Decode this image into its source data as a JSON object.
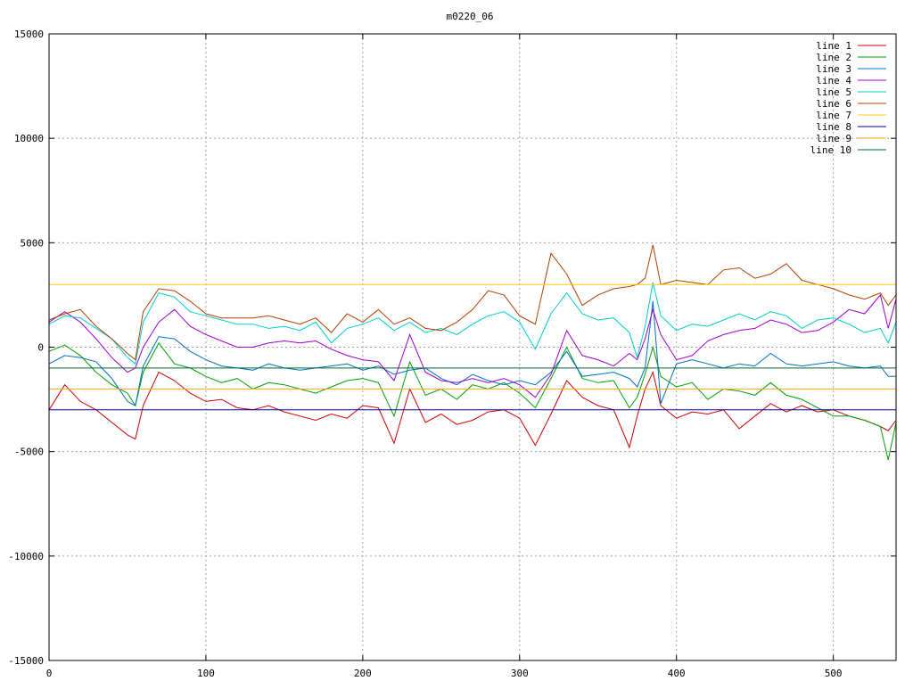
{
  "chart_data": {
    "type": "line",
    "title": "m0220_06",
    "xlabel": "",
    "ylabel": "",
    "xlim": [
      0,
      540
    ],
    "ylim": [
      -15000,
      15000
    ],
    "grid": true,
    "legend_position": "top-right",
    "x_ticks": [
      0,
      100,
      200,
      300,
      400,
      500
    ],
    "x_tick_labels": [
      "0",
      "100",
      "200",
      "300",
      "400",
      "500"
    ],
    "y_ticks": [
      -15000,
      -10000,
      -5000,
      0,
      5000,
      10000,
      15000
    ],
    "y_tick_labels": [
      "-15000",
      "-10000",
      "-5000",
      "0",
      "5000",
      "10000",
      "15000"
    ],
    "x": [
      0,
      10,
      20,
      30,
      40,
      50,
      55,
      60,
      70,
      80,
      90,
      100,
      110,
      120,
      130,
      140,
      150,
      160,
      170,
      180,
      190,
      200,
      210,
      220,
      230,
      240,
      250,
      260,
      270,
      280,
      290,
      300,
      310,
      320,
      330,
      340,
      350,
      360,
      370,
      375,
      380,
      385,
      390,
      400,
      410,
      420,
      430,
      440,
      450,
      460,
      470,
      480,
      490,
      500,
      510,
      520,
      530,
      535,
      540
    ],
    "series": [
      {
        "name": "line 1",
        "color": "#cc0000",
        "values": [
          -3000,
          -1800,
          -2600,
          -3000,
          -3600,
          -4200,
          -4400,
          -2800,
          -1200,
          -1600,
          -2200,
          -2600,
          -2500,
          -2900,
          -3000,
          -2800,
          -3100,
          -3300,
          -3500,
          -3200,
          -3400,
          -2800,
          -2900,
          -4600,
          -2000,
          -3600,
          -3200,
          -3700,
          -3500,
          -3100,
          -3000,
          -3400,
          -4700,
          -3200,
          -1600,
          -2400,
          -2800,
          -3000,
          -4800,
          -3300,
          -2000,
          -1200,
          -2800,
          -3400,
          -3100,
          -3200,
          -3000,
          -3900,
          -3300,
          -2700,
          -3100,
          -2800,
          -3100,
          -3000,
          -3300,
          -3500,
          -3800,
          -4000,
          -3500
        ]
      },
      {
        "name": "line 2",
        "color": "#00a000",
        "values": [
          -200,
          100,
          -400,
          -1200,
          -1800,
          -2200,
          -2800,
          -1200,
          200,
          -800,
          -1000,
          -1400,
          -1700,
          -1500,
          -2000,
          -1700,
          -1800,
          -2000,
          -2200,
          -1900,
          -1600,
          -1500,
          -1700,
          -3300,
          -700,
          -2300,
          -2000,
          -2500,
          -1800,
          -2000,
          -1700,
          -2200,
          -2900,
          -1500,
          0,
          -1500,
          -1700,
          -1600,
          -2900,
          -2400,
          -1300,
          0,
          -1400,
          -1900,
          -1700,
          -2500,
          -2000,
          -2100,
          -2300,
          -1700,
          -2300,
          -2500,
          -2900,
          -3300,
          -3300,
          -3500,
          -3800,
          -5400,
          -3600
        ]
      },
      {
        "name": "line 3",
        "color": "#0070c0",
        "values": [
          -800,
          -400,
          -500,
          -700,
          -1500,
          -2600,
          -2800,
          -900,
          500,
          400,
          -200,
          -600,
          -900,
          -1000,
          -1100,
          -800,
          -1000,
          -1100,
          -1000,
          -900,
          -800,
          -1100,
          -900,
          -1300,
          -1100,
          -1000,
          -1500,
          -1800,
          -1300,
          -1600,
          -1800,
          -1600,
          -1800,
          -1200,
          -200,
          -1400,
          -1300,
          -1200,
          -1500,
          -1900,
          -1000,
          2200,
          -2700,
          -800,
          -600,
          -800,
          -1000,
          -800,
          -900,
          -300,
          -800,
          -900,
          -800,
          -700,
          -900,
          -1000,
          -900,
          -1400,
          -1400
        ]
      },
      {
        "name": "line 4",
        "color": "#a000d0",
        "values": [
          1200,
          1700,
          1200,
          400,
          -500,
          -1200,
          -1000,
          0,
          1200,
          1800,
          1000,
          600,
          300,
          0,
          0,
          200,
          300,
          200,
          300,
          -100,
          -400,
          -600,
          -700,
          -1600,
          600,
          -1200,
          -1600,
          -1700,
          -1500,
          -1700,
          -1500,
          -1800,
          -2400,
          -1300,
          800,
          -400,
          -600,
          -900,
          -300,
          -600,
          400,
          1800,
          600,
          -600,
          -400,
          300,
          600,
          800,
          900,
          1300,
          1100,
          700,
          800,
          1200,
          1800,
          1600,
          2500,
          900,
          2300
        ]
      },
      {
        "name": "line 5",
        "color": "#00cccc",
        "values": [
          1100,
          1500,
          1400,
          900,
          400,
          -500,
          -800,
          1200,
          2600,
          2400,
          1700,
          1500,
          1300,
          1100,
          1100,
          900,
          1000,
          800,
          1200,
          200,
          900,
          1100,
          1400,
          800,
          1200,
          700,
          900,
          600,
          1100,
          1500,
          1700,
          1200,
          -100,
          1600,
          2600,
          1600,
          1300,
          1400,
          700,
          -500,
          1000,
          3100,
          1500,
          800,
          1100,
          1000,
          1300,
          1600,
          1300,
          1700,
          1500,
          900,
          1300,
          1400,
          1100,
          700,
          900,
          200,
          1200
        ]
      },
      {
        "name": "line 6",
        "color": "#b04000",
        "values": [
          1300,
          1600,
          1800,
          1000,
          400,
          -300,
          -600,
          1700,
          2800,
          2700,
          2200,
          1600,
          1400,
          1400,
          1400,
          1500,
          1300,
          1100,
          1400,
          700,
          1600,
          1200,
          1800,
          1100,
          1400,
          900,
          800,
          1200,
          1800,
          2700,
          2500,
          1500,
          1100,
          4500,
          3500,
          2000,
          2500,
          2800,
          2900,
          3000,
          3300,
          4900,
          3000,
          3200,
          3100,
          3000,
          3700,
          3800,
          3300,
          3500,
          4000,
          3200,
          3000,
          2800,
          2500,
          2300,
          2600,
          2000,
          2500
        ]
      },
      {
        "name": "line 7",
        "color": "#ffcc00",
        "values": [
          3000,
          3000,
          3000,
          3000,
          3000,
          3000,
          3000,
          3000,
          3000,
          3000,
          3000,
          3000,
          3000,
          3000,
          3000,
          3000,
          3000,
          3000,
          3000,
          3000,
          3000,
          3000,
          3000,
          3000,
          3000,
          3000,
          3000,
          3000,
          3000,
          3000,
          3000,
          3000,
          3000,
          3000,
          3000,
          3000,
          3000,
          3000,
          3000,
          3000,
          3000,
          3000,
          3000,
          3000,
          3000,
          3000,
          3000,
          3000,
          3000,
          3000,
          3000,
          3000,
          3000,
          3000,
          3000,
          3000,
          3000,
          3000,
          3000
        ]
      },
      {
        "name": "line 8",
        "color": "#0000b0",
        "values": [
          -3000,
          -3000,
          -3000,
          -3000,
          -3000,
          -3000,
          -3000,
          -3000,
          -3000,
          -3000,
          -3000,
          -3000,
          -3000,
          -3000,
          -3000,
          -3000,
          -3000,
          -3000,
          -3000,
          -3000,
          -3000,
          -3000,
          -3000,
          -3000,
          -3000,
          -3000,
          -3000,
          -3000,
          -3000,
          -3000,
          -3000,
          -3000,
          -3000,
          -3000,
          -3000,
          -3000,
          -3000,
          -3000,
          -3000,
          -3000,
          -3000,
          -3000,
          -3000,
          -3000,
          -3000,
          -3000,
          -3000,
          -3000,
          -3000,
          -3000,
          -3000,
          -3000,
          -3000,
          -3000,
          -3000,
          -3000,
          -3000,
          -3000,
          -3000
        ]
      },
      {
        "name": "line 9",
        "color": "#ffaa00",
        "values": [
          -2000,
          -2000,
          -2000,
          -2000,
          -2000,
          -2000,
          -2000,
          -2000,
          -2000,
          -2000,
          -2000,
          -2000,
          -2000,
          -2000,
          -2000,
          -2000,
          -2000,
          -2000,
          -2000,
          -2000,
          -2000,
          -2000,
          -2000,
          -2000,
          -2000,
          -2000,
          -2000,
          -2000,
          -2000,
          -2000,
          -2000,
          -2000,
          -2000,
          -2000,
          -2000,
          -2000,
          -2000,
          -2000,
          -2000,
          -2000,
          -2000,
          -2000,
          -2000,
          -2000,
          -2000,
          -2000,
          -2000,
          -2000,
          -2000,
          -2000,
          -2000,
          -2000,
          -2000,
          -2000,
          -2000,
          -2000,
          -2000,
          -2000,
          -2000
        ]
      },
      {
        "name": "line 10",
        "color": "#006633",
        "values": [
          -1000,
          -1000,
          -1000,
          -1000,
          -1000,
          -1000,
          -1000,
          -1000,
          -1000,
          -1000,
          -1000,
          -1000,
          -1000,
          -1000,
          -1000,
          -1000,
          -1000,
          -1000,
          -1000,
          -1000,
          -1000,
          -1000,
          -1000,
          -1000,
          -1000,
          -1000,
          -1000,
          -1000,
          -1000,
          -1000,
          -1000,
          -1000,
          -1000,
          -1000,
          -1000,
          -1000,
          -1000,
          -1000,
          -1000,
          -1000,
          -1000,
          -1000,
          -1000,
          -1000,
          -1000,
          -1000,
          -1000,
          -1000,
          -1000,
          -1000,
          -1000,
          -1000,
          -1000,
          -1000,
          -1000,
          -1000,
          -1000,
          -1000,
          -1000
        ]
      }
    ]
  }
}
